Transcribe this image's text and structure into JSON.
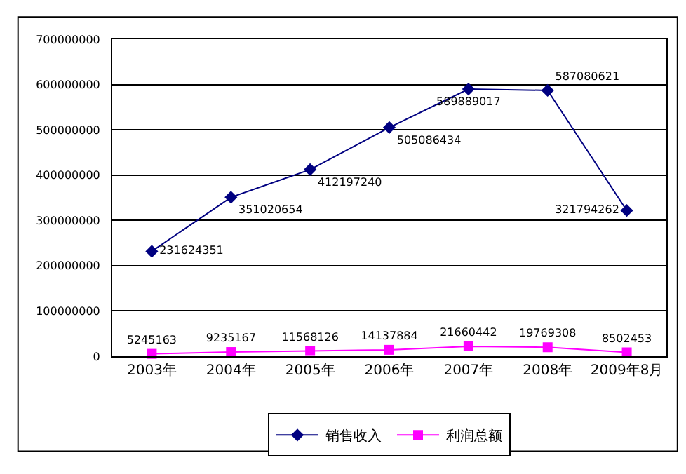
{
  "chart_data": {
    "type": "line",
    "categories": [
      "2003年",
      "2004年",
      "2005年",
      "2006年",
      "2007年",
      "2008年",
      "2009年8月"
    ],
    "series": [
      {
        "name": "销售收入",
        "color": "#000080",
        "marker": "diamond",
        "values": [
          231624351,
          351020654,
          412197240,
          505086434,
          589889017,
          587080621,
          321794262
        ]
      },
      {
        "name": "利润总额",
        "color": "#ff00ff",
        "marker": "square",
        "values": [
          5245163,
          9235167,
          11568126,
          14137884,
          21660442,
          19769308,
          8502453
        ]
      }
    ],
    "ylim": [
      0,
      700000000
    ],
    "yticks": [
      0,
      100000000,
      200000000,
      300000000,
      400000000,
      500000000,
      600000000,
      700000000
    ],
    "grid": "y",
    "legend": "bottom",
    "data_labels": true,
    "line_style": "solid"
  }
}
